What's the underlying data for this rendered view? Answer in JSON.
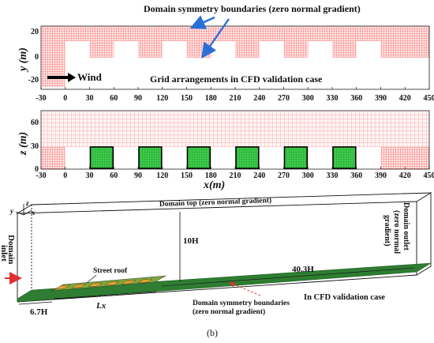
{
  "panel_top": {
    "annotation_symmetry": "Domain symmetry boundaries (zero normal gradient)",
    "wind_label": "Wind",
    "grid_caption": "Grid arrangements in CFD validation case",
    "y_axis_label": "y (m)",
    "y_ticks": [
      "20",
      "0",
      "-20"
    ],
    "x_ticks": [
      "-30",
      "0",
      "30",
      "60",
      "90",
      "120",
      "150",
      "180",
      "210",
      "240",
      "270",
      "300",
      "330",
      "360",
      "390",
      "420",
      "450"
    ]
  },
  "panel_mid": {
    "z_axis_label": "z (m)",
    "z_ticks": [
      "60",
      "30",
      "0"
    ],
    "x_ticks": [
      "-30",
      "0",
      "30",
      "60",
      "90",
      "120",
      "150",
      "180",
      "210",
      "240",
      "270",
      "300",
      "330",
      "360",
      "390",
      "420",
      "450"
    ],
    "x_axis_label": "x(m)"
  },
  "panel_3d": {
    "domain_top": "Domain  top (zero normal gradient)",
    "domain_outlet_lines": [
      "Domain outlet",
      "(zero normal",
      "gradient)"
    ],
    "domain_inlet_lines": [
      "Domain",
      "inlet"
    ],
    "height_label": "10H",
    "street_roof": "Street roof",
    "length_label": "40.3H",
    "inlet_dist": "6.7H",
    "lx_label": "Lx",
    "sym_lines": [
      "Domain symmetry boundaries",
      "(zero normal gradient)"
    ],
    "validation_case": "In CFD validation case",
    "axes": {
      "y": "y",
      "z": "z",
      "x": "x"
    }
  },
  "caption": "(b)",
  "colors": {
    "grid": "#ff2a2a",
    "building": "#22bb33",
    "ground": "#2e7d32",
    "roof": "#e8a33a"
  }
}
